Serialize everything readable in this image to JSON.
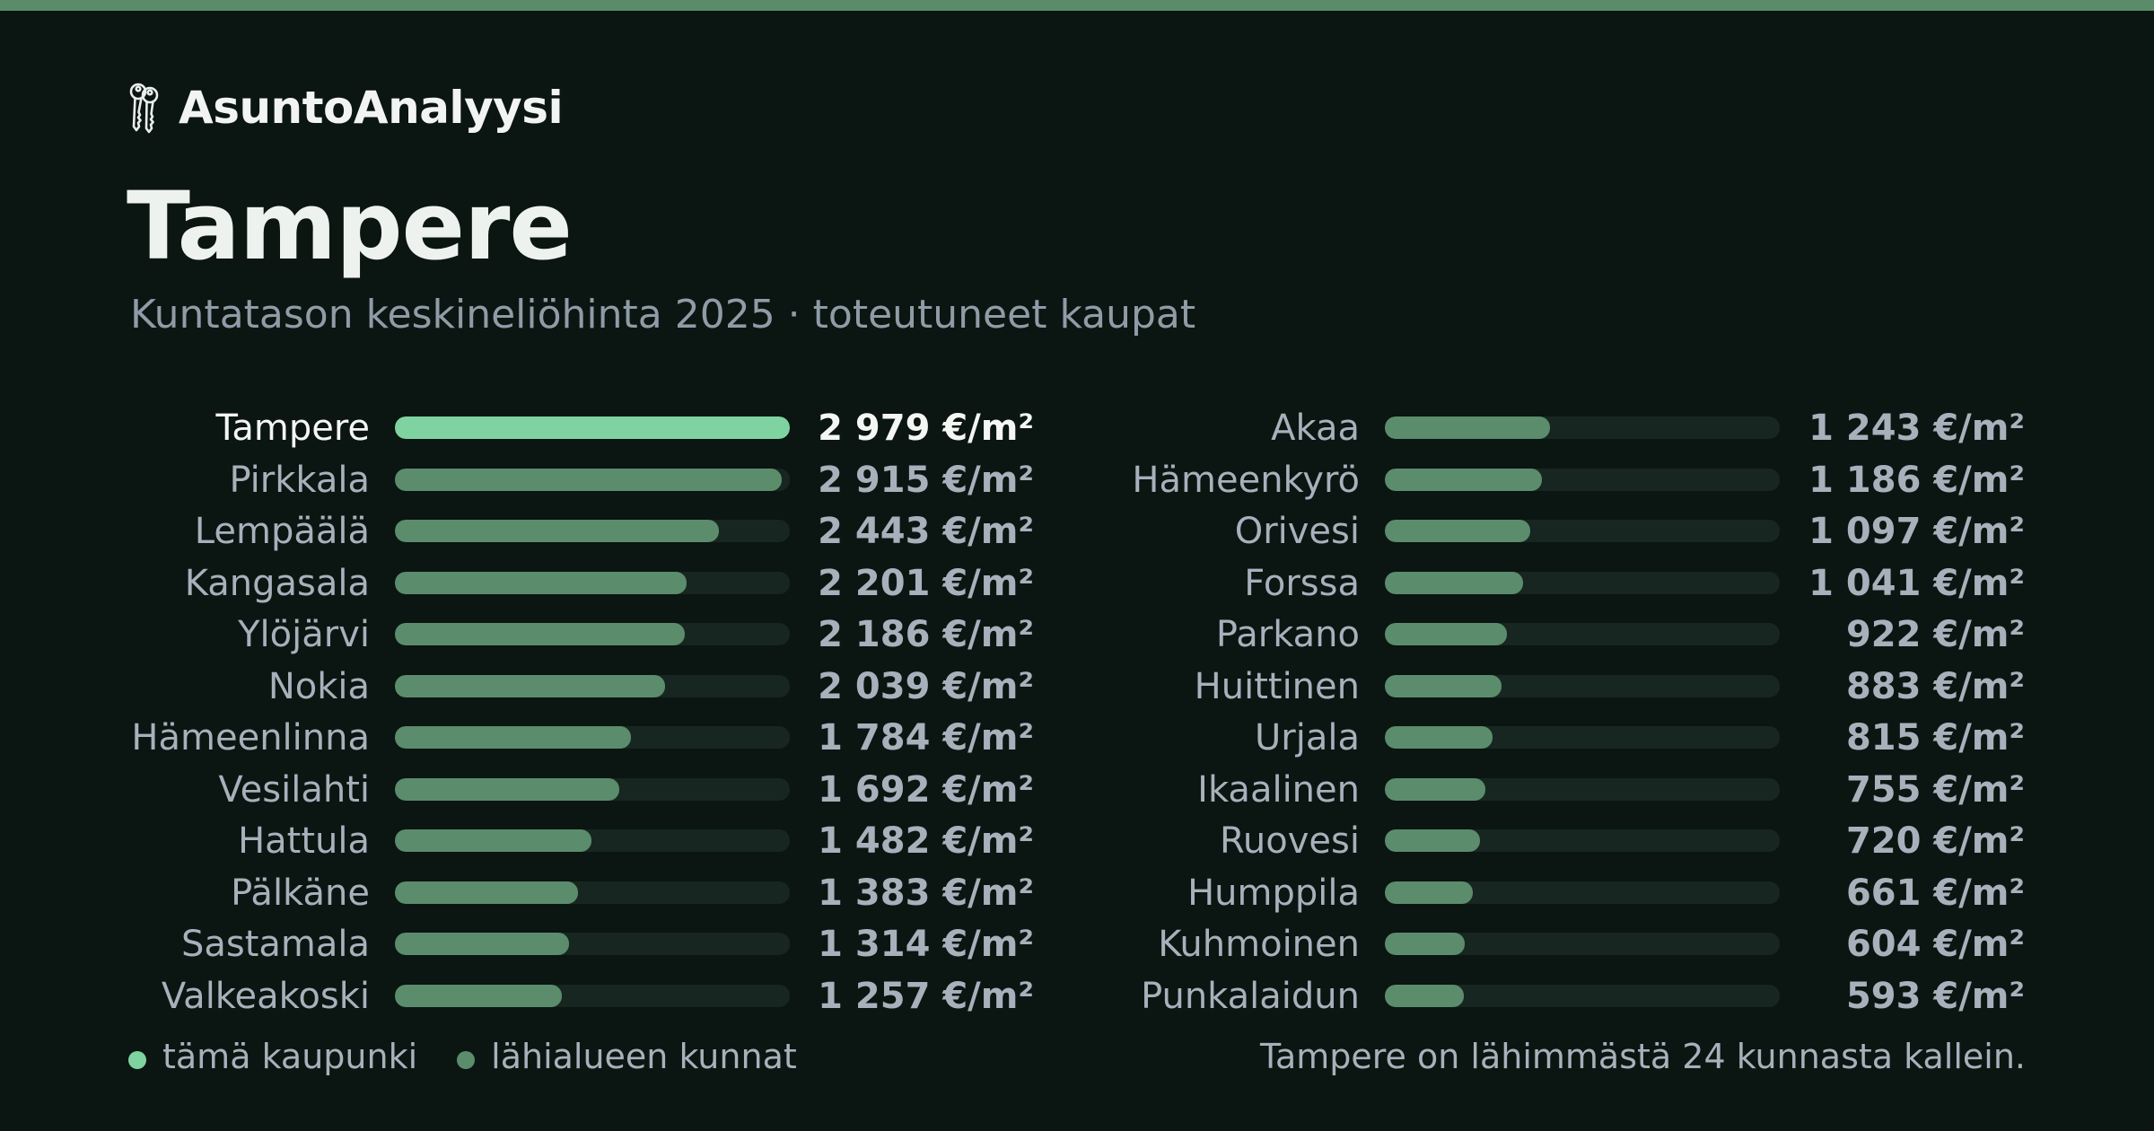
{
  "brand": {
    "name": "AsuntoAnalyysi",
    "icon": "keys-icon"
  },
  "title": "Tampere",
  "subtitle": "Kuntatason keskineliöhinta 2025 · toteutuneet kaupat",
  "colors": {
    "highlight": "#7fd3a0",
    "bar": "#5b8c6c",
    "track": "#172620",
    "background": "#0b1512",
    "accent_top": "#5a8c69"
  },
  "chart_data": {
    "type": "bar",
    "orientation": "horizontal",
    "unit": "€/m²",
    "highlight": "Tampere",
    "xlim": [
      0,
      2979
    ],
    "categories": [
      "Tampere",
      "Pirkkala",
      "Lempäälä",
      "Kangasala",
      "Ylöjärvi",
      "Nokia",
      "Hämeenlinna",
      "Vesilahti",
      "Hattula",
      "Pälkäne",
      "Sastamala",
      "Valkeakoski",
      "Akaa",
      "Hämeenkyrö",
      "Orivesi",
      "Forssa",
      "Parkano",
      "Huittinen",
      "Urjala",
      "Ikaalinen",
      "Ruovesi",
      "Humppila",
      "Kuhmoinen",
      "Punkalaidun"
    ],
    "values": [
      2979,
      2915,
      2443,
      2201,
      2186,
      2039,
      1784,
      1692,
      1482,
      1383,
      1314,
      1257,
      1243,
      1186,
      1097,
      1041,
      922,
      883,
      815,
      755,
      720,
      661,
      604,
      593
    ],
    "value_labels": [
      "2 979 €/m²",
      "2 915 €/m²",
      "2 443 €/m²",
      "2 201 €/m²",
      "2 186 €/m²",
      "2 039 €/m²",
      "1 784 €/m²",
      "1 692 €/m²",
      "1 482 €/m²",
      "1 383 €/m²",
      "1 314 €/m²",
      "1 257 €/m²",
      "1 243 €/m²",
      "1 186 €/m²",
      "1 097 €/m²",
      "1 041 €/m²",
      "922 €/m²",
      "883 €/m²",
      "815 €/m²",
      "755 €/m²",
      "720 €/m²",
      "661 €/m²",
      "604 €/m²",
      "593 €/m²"
    ]
  },
  "legend": {
    "this_city": "tämä kaupunki",
    "nearby": "lähialueen kunnat"
  },
  "footnote": "Tampere on lähimmästä 24 kunnasta kallein."
}
